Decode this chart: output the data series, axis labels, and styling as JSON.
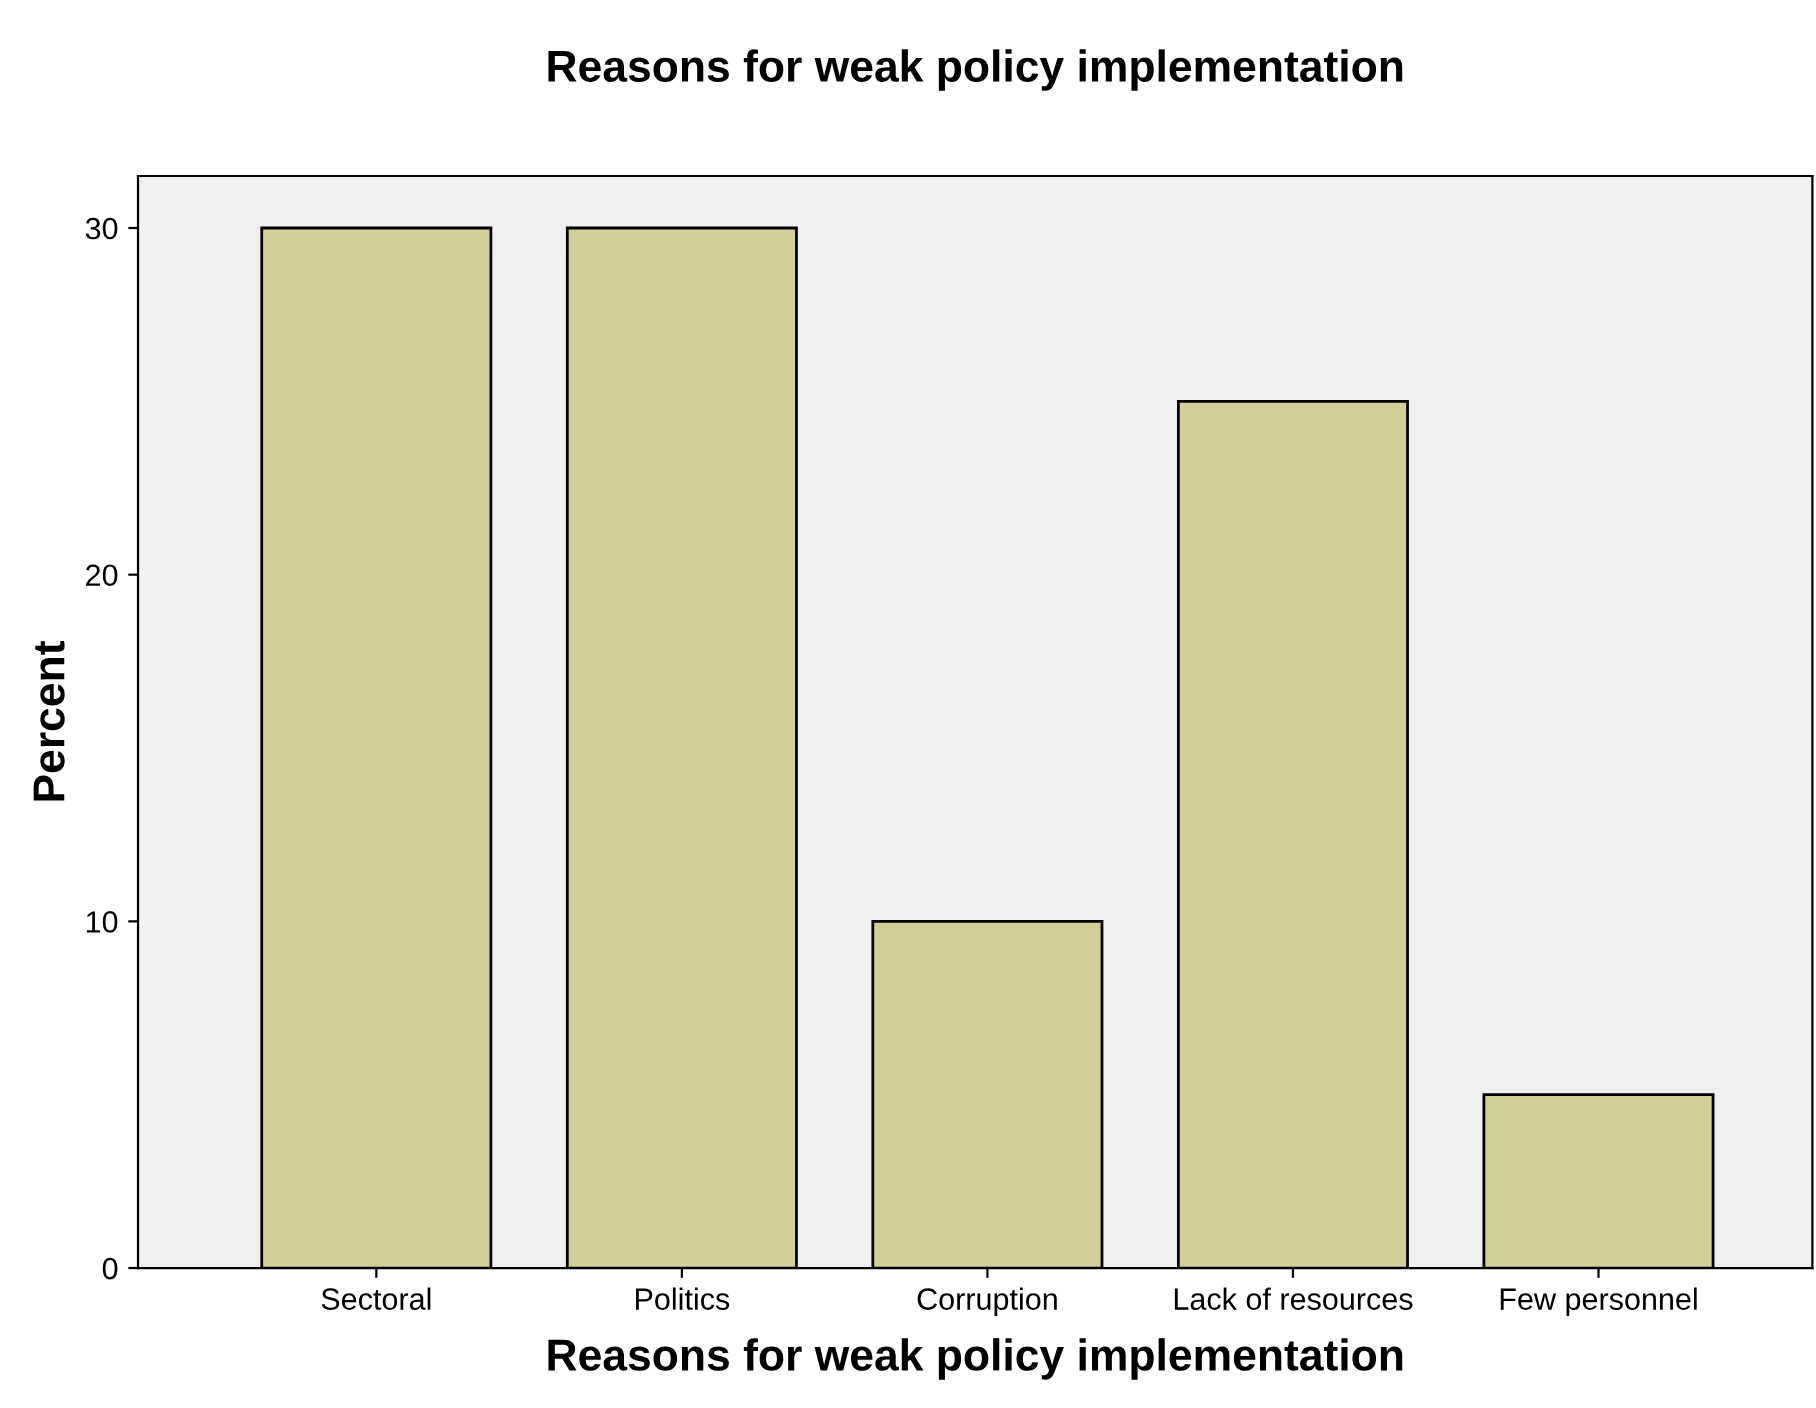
{
  "chart_data": {
    "type": "bar",
    "title": "Reasons for weak policy implementation",
    "xlabel": "Reasons for weak policy implementation",
    "ylabel": "Percent",
    "categories": [
      "Sectoral",
      "Politics",
      "Corruption",
      "Lack of resources",
      "Few personnel"
    ],
    "values": [
      30,
      30,
      10,
      25,
      5
    ],
    "color": "#d4cf98",
    "ylim": [
      0,
      31.5
    ],
    "yticks": [
      0,
      10,
      20,
      30
    ],
    "grid": false,
    "legend": false
  }
}
